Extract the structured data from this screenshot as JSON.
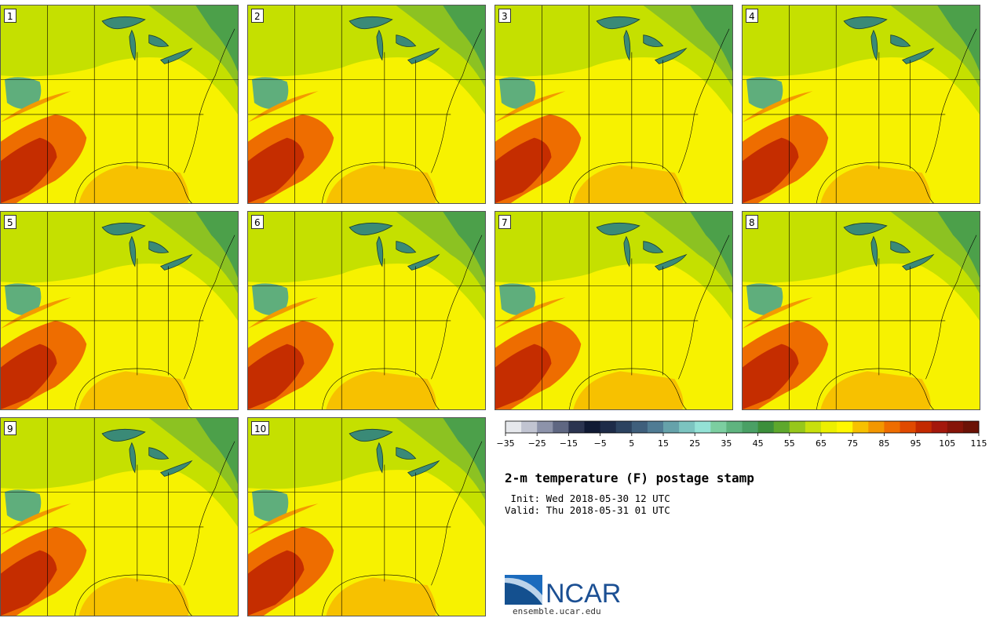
{
  "panels": [
    {
      "label": "1"
    },
    {
      "label": "2"
    },
    {
      "label": "3"
    },
    {
      "label": "4"
    },
    {
      "label": "5"
    },
    {
      "label": "6"
    },
    {
      "label": "7"
    },
    {
      "label": "8"
    },
    {
      "label": "9"
    },
    {
      "label": "10"
    }
  ],
  "colorbar": {
    "colors": [
      "#e6e8ec",
      "#c1c4d1",
      "#8d93aa",
      "#5f6782",
      "#2b3450",
      "#101a34",
      "#1d2b48",
      "#2c4360",
      "#3f5f7c",
      "#507c94",
      "#66a2aa",
      "#7cc4c0",
      "#94e2d6",
      "#7ccea0",
      "#5fb47f",
      "#4aa065",
      "#3c8f3b",
      "#5ea82c",
      "#97c71b",
      "#c8e00c",
      "#ecf000",
      "#fff800",
      "#f7c100",
      "#f39700",
      "#ee6d00",
      "#e04a00",
      "#c32a00",
      "#a4180c",
      "#861408",
      "#6b1206"
    ],
    "tick_labels": [
      "−35",
      "−25",
      "−15",
      "−5",
      "5",
      "15",
      "25",
      "35",
      "45",
      "55",
      "65",
      "75",
      "85",
      "95",
      "105",
      "115"
    ]
  },
  "title": "2-m temperature (F) postage stamp",
  "init_line": " Init: Wed 2018-05-30 12 UTC",
  "valid_line": "Valid: Thu 2018-05-31 01 UTC",
  "logo": {
    "text": "NCAR",
    "subtext": "ensemble.ucar.edu",
    "brand_color": "#1b4f93"
  }
}
